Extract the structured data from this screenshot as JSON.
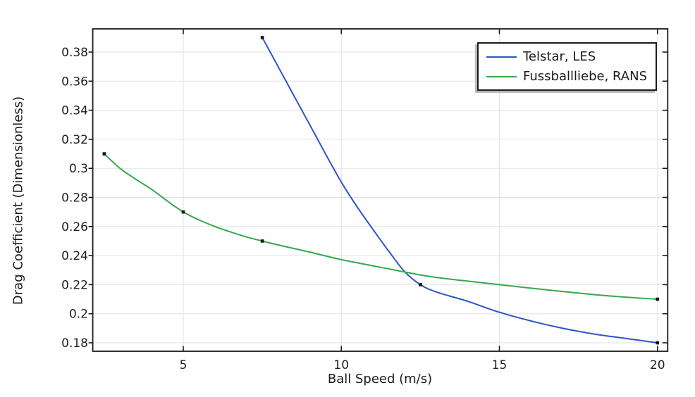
{
  "style": {
    "background": "#ffffff",
    "grid_color": "#e2e2e2",
    "axis_color": "#1a1a1a",
    "text_color": "#1f1f1f",
    "marker_color": "#141414",
    "legend_bg": "#ffffff",
    "legend_border": "#1a1a1a",
    "legend_shadow": "#b9b9b9"
  },
  "chart_data": {
    "type": "line",
    "title": "",
    "xlabel": "Ball Speed (m/s)",
    "ylabel": "Drag Coefficient (Dimensionless)",
    "xlim": [
      2.14,
      20.32
    ],
    "ylim": [
      0.174,
      0.396
    ],
    "x_ticks": [
      5,
      10,
      15,
      20
    ],
    "x_tick_labels": [
      "5",
      "10",
      "15",
      "20"
    ],
    "y_ticks": [
      0.38,
      0.36,
      0.34,
      0.32,
      0.3,
      0.28,
      0.26,
      0.24,
      0.22,
      0.2,
      0.18
    ],
    "y_tick_labels": [
      "0.38",
      "0.36",
      "0.34",
      "0.32",
      "0.3",
      "0.28",
      "0.26",
      "0.24",
      "0.22",
      "0.2",
      "0.18"
    ],
    "grid": true,
    "legend": {
      "position": "top-right",
      "entries": [
        {
          "label": "Telstar, LES",
          "color": "#2f54c8"
        },
        {
          "label": "Fussballliebe, RANS",
          "color": "#35a84e"
        }
      ]
    },
    "series": [
      {
        "name": "Telstar, LES",
        "color": "#2f54c8",
        "marker": "square",
        "points": [
          [
            7.5,
            0.39
          ],
          [
            12.5,
            0.22
          ],
          [
            20,
            0.18
          ]
        ],
        "curve_samples": [
          [
            7.5,
            0.39
          ],
          [
            8.0,
            0.37
          ],
          [
            8.5,
            0.35
          ],
          [
            9.0,
            0.33
          ],
          [
            9.5,
            0.31
          ],
          [
            10.0,
            0.2905
          ],
          [
            10.5,
            0.2735
          ],
          [
            11.0,
            0.258
          ],
          [
            11.5,
            0.243
          ],
          [
            12.0,
            0.229
          ],
          [
            12.5,
            0.22
          ],
          [
            13.0,
            0.215
          ],
          [
            14.0,
            0.2085
          ],
          [
            15.0,
            0.201
          ],
          [
            16.0,
            0.195
          ],
          [
            17.0,
            0.19
          ],
          [
            18.0,
            0.186
          ],
          [
            19.0,
            0.183
          ],
          [
            20.0,
            0.18
          ]
        ]
      },
      {
        "name": "Fussballliebe, RANS",
        "color": "#35a84e",
        "marker": "square",
        "points": [
          [
            2.5,
            0.31
          ],
          [
            5,
            0.27
          ],
          [
            7.5,
            0.25
          ],
          [
            20,
            0.21
          ]
        ],
        "curve_samples": [
          [
            2.5,
            0.31
          ],
          [
            3.0,
            0.3
          ],
          [
            3.5,
            0.2925
          ],
          [
            4.0,
            0.2855
          ],
          [
            4.5,
            0.2775
          ],
          [
            5.0,
            0.27
          ],
          [
            5.5,
            0.2645
          ],
          [
            6.0,
            0.26
          ],
          [
            6.5,
            0.2562
          ],
          [
            7.0,
            0.2528
          ],
          [
            7.5,
            0.25
          ],
          [
            8.0,
            0.2473
          ],
          [
            9.0,
            0.2424
          ],
          [
            10.0,
            0.2372
          ],
          [
            11.0,
            0.233
          ],
          [
            12.0,
            0.2287
          ],
          [
            12.5,
            0.2267
          ],
          [
            13.0,
            0.225
          ],
          [
            14.0,
            0.2224
          ],
          [
            15.0,
            0.22
          ],
          [
            16.0,
            0.2176
          ],
          [
            17.5,
            0.2142
          ],
          [
            18.5,
            0.2122
          ],
          [
            20.0,
            0.21
          ]
        ]
      }
    ]
  }
}
